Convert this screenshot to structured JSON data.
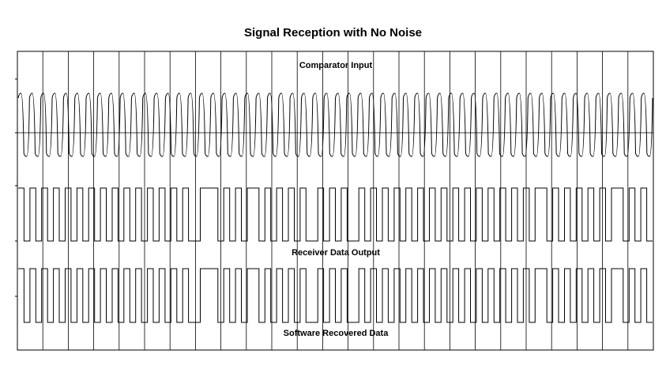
{
  "chart_data": {
    "type": "line",
    "title": "Signal Reception with No Noise",
    "xlabel": "",
    "ylabel": "",
    "grid": true,
    "vertical_divisions": 25,
    "series": [
      {
        "name": "Comparator Input",
        "kind": "analog",
        "levels": [
          1,
          0,
          1,
          0,
          1,
          0,
          1,
          0,
          1,
          0,
          1,
          0,
          1,
          0,
          1,
          0,
          1,
          0,
          1,
          0,
          1,
          0,
          1,
          0,
          1,
          0,
          1,
          0,
          1,
          0,
          1,
          0,
          1,
          0,
          1,
          0,
          1,
          0,
          1,
          0,
          1,
          0,
          1,
          0,
          1,
          0,
          1,
          0,
          1,
          0,
          1,
          0,
          1,
          0,
          1,
          0,
          1,
          0,
          1,
          0,
          1,
          0,
          1,
          0,
          1,
          0,
          1,
          0,
          1,
          0,
          1,
          0,
          1,
          0,
          1,
          0,
          1,
          0,
          1,
          0,
          1,
          0,
          1,
          0,
          1,
          0,
          1,
          0,
          1,
          0,
          1,
          0,
          1,
          0,
          1,
          0,
          1,
          0,
          1,
          0,
          1,
          0,
          1,
          0,
          1,
          0,
          1,
          0,
          1,
          0,
          1,
          0
        ],
        "durations": [
          3,
          3,
          3,
          3,
          3,
          3,
          3,
          3,
          3,
          3,
          3,
          3,
          3,
          3,
          3,
          3,
          3,
          3,
          3,
          3,
          3,
          3,
          3,
          3,
          3,
          3,
          3,
          3,
          3,
          3,
          3,
          3,
          3,
          3,
          3,
          3,
          3,
          3,
          3,
          3,
          3,
          3,
          3,
          3,
          3,
          3,
          3,
          3,
          3,
          3,
          3,
          3,
          3,
          3,
          3,
          3,
          3,
          3,
          3,
          3,
          3,
          3,
          3,
          3,
          3,
          3,
          3,
          3,
          3,
          3,
          3,
          3,
          3,
          3,
          3,
          3,
          3,
          3,
          3,
          3,
          3,
          3,
          3,
          3,
          3,
          3,
          3,
          3,
          3,
          3,
          3,
          3,
          3,
          3,
          3,
          3,
          3,
          3,
          3,
          3,
          3,
          3,
          3,
          3,
          3,
          3,
          3,
          3,
          3,
          3,
          3,
          3
        ]
      },
      {
        "name": "Receiver Data Output",
        "kind": "digital",
        "levels": [
          1,
          0,
          1,
          0,
          1,
          0,
          1,
          0,
          1,
          0,
          1,
          0,
          1,
          0,
          1,
          0,
          1,
          0,
          1,
          0,
          1,
          0,
          1,
          0,
          1,
          0,
          1,
          0,
          1,
          0,
          1,
          0,
          1,
          0,
          1,
          0,
          1,
          0,
          1,
          0,
          1,
          0,
          1,
          0,
          1,
          0,
          1,
          0,
          1,
          0,
          1,
          0,
          1,
          0,
          1,
          0,
          1,
          0,
          1,
          0,
          1,
          0,
          1,
          0,
          1,
          0,
          1,
          0,
          1,
          0,
          1,
          0,
          1,
          0,
          1,
          0,
          1,
          0,
          1,
          0,
          1,
          0,
          1,
          0,
          1,
          0,
          1,
          0,
          1,
          0,
          1,
          0,
          1,
          0,
          1,
          0,
          1,
          0,
          1,
          0
        ],
        "durations": [
          1,
          1,
          1,
          1,
          1,
          1,
          1,
          1,
          1,
          1,
          1,
          1,
          1,
          1,
          1,
          1,
          1,
          1,
          1,
          1,
          1,
          1,
          1,
          1,
          1,
          1,
          1,
          1,
          1,
          2,
          3,
          1,
          1,
          1,
          1,
          1,
          2,
          1,
          1,
          1,
          1,
          1,
          1,
          1,
          1,
          2,
          1,
          1,
          1,
          1,
          1,
          2,
          1,
          1,
          1,
          1,
          1,
          1,
          1,
          1,
          1,
          1,
          1,
          1,
          1,
          1,
          1,
          1,
          1,
          1,
          1,
          1,
          1,
          1,
          1,
          1,
          1,
          1,
          1,
          1,
          1,
          1,
          2,
          1,
          1,
          1,
          1,
          1,
          1,
          1,
          1,
          1,
          1,
          1,
          2,
          1,
          1,
          1,
          1,
          1
        ]
      },
      {
        "name": "Software Recovered Data",
        "kind": "digital",
        "levels": [
          1,
          0,
          1,
          0,
          1,
          0,
          1,
          0,
          1,
          0,
          1,
          0,
          1,
          0,
          1,
          0,
          1,
          0,
          1,
          0,
          1,
          0,
          1,
          0,
          1,
          0,
          1,
          0,
          1,
          0,
          1,
          0,
          1,
          0,
          1,
          0,
          1,
          0,
          1,
          0,
          1,
          0,
          1,
          0,
          1,
          0,
          1,
          0,
          1,
          0,
          1,
          0,
          1,
          0,
          1,
          0,
          1,
          0,
          1,
          0,
          1,
          0,
          1,
          0,
          1,
          0,
          1,
          0,
          1,
          0,
          1,
          0,
          1,
          0,
          1,
          0,
          1,
          0,
          1,
          0,
          1,
          0,
          1,
          0,
          1,
          0,
          1,
          0,
          1,
          0,
          1,
          0,
          1,
          0,
          1,
          0,
          1,
          0,
          1,
          0
        ],
        "durations": [
          1,
          1,
          1,
          1,
          1,
          1,
          1,
          1,
          1,
          1,
          1,
          1,
          1,
          1,
          1,
          1,
          1,
          1,
          1,
          1,
          1,
          1,
          1,
          1,
          1,
          1,
          1,
          1,
          1,
          2,
          3,
          1,
          1,
          1,
          1,
          1,
          2,
          1,
          1,
          1,
          1,
          1,
          1,
          1,
          1,
          2,
          1,
          1,
          1,
          1,
          1,
          2,
          1,
          1,
          1,
          1,
          1,
          1,
          1,
          1,
          1,
          1,
          1,
          1,
          1,
          1,
          1,
          1,
          1,
          1,
          1,
          1,
          1,
          1,
          1,
          1,
          1,
          1,
          1,
          1,
          1,
          1,
          2,
          1,
          1,
          1,
          1,
          1,
          1,
          1,
          1,
          1,
          1,
          1,
          2,
          1,
          1,
          1,
          1,
          1
        ]
      }
    ]
  }
}
